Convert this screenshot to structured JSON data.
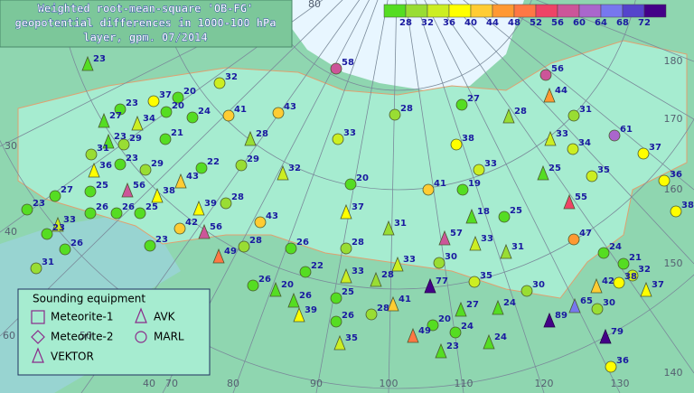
{
  "title": [
    "Weighted root-mean-square 'OB-FG'",
    "geopotential differences in 1000-100 hPa",
    "layer, gpm. 07/2014"
  ],
  "color_scale": {
    "labels": [
      28,
      32,
      36,
      40,
      44,
      48,
      52,
      56,
      60,
      64,
      68,
      72
    ],
    "colors": [
      "#55dd22",
      "#99dd33",
      "#ccee22",
      "#ffff00",
      "#ffcc33",
      "#ff9933",
      "#ff7744",
      "#ee4466",
      "#cc5599",
      "#aa66cc",
      "#7777ee",
      "#5544cc",
      "#440088"
    ]
  },
  "graticule_labels": [
    80,
    180,
    170,
    160,
    150,
    140,
    130,
    120,
    110,
    100,
    90,
    80,
    70,
    40,
    30,
    40,
    60,
    50
  ],
  "legend": {
    "title": "Sounding equipment",
    "items": [
      "Meteorite-1",
      "AVK",
      "Meteorite-2",
      "MARL",
      "VEKTOR"
    ]
  },
  "stations": [
    {
      "value": 23,
      "equipment": "AVK"
    },
    {
      "value": 58,
      "equipment": "MARL"
    },
    {
      "value": 56,
      "equipment": "MARL"
    },
    {
      "value": 44,
      "equipment": "AVK"
    },
    {
      "value": 37,
      "equipment": "MARL"
    },
    {
      "value": 20,
      "equipment": "MARL"
    },
    {
      "value": 32,
      "equipment": "MARL"
    },
    {
      "value": 23,
      "equipment": "MARL"
    },
    {
      "value": 27,
      "equipment": "AVK"
    },
    {
      "value": 34,
      "equipment": "AVK"
    },
    {
      "value": 20,
      "equipment": "MARL"
    },
    {
      "value": 24,
      "equipment": "MARL"
    },
    {
      "value": 41,
      "equipment": "MARL"
    },
    {
      "value": 43,
      "equipment": "MARL"
    },
    {
      "value": 28,
      "equipment": "MARL"
    },
    {
      "value": 27,
      "equipment": "MARL"
    },
    {
      "value": 28,
      "equipment": "AVK"
    },
    {
      "value": 31,
      "equipment": "MARL"
    },
    {
      "value": 61,
      "equipment": "MARL"
    },
    {
      "value": 23,
      "equipment": "AVK"
    },
    {
      "value": 29,
      "equipment": "MARL"
    },
    {
      "value": 21,
      "equipment": "MARL"
    },
    {
      "value": 28,
      "equipment": "AVK"
    },
    {
      "value": 33,
      "equipment": "MARL"
    },
    {
      "value": 38,
      "equipment": "MARL"
    },
    {
      "value": 33,
      "equipment": "AVK"
    },
    {
      "value": 34,
      "equipment": "MARL"
    },
    {
      "value": 37,
      "equipment": "MARL"
    },
    {
      "value": 31,
      "equipment": "MARL"
    },
    {
      "value": 23,
      "equipment": "MARL"
    },
    {
      "value": 36,
      "equipment": "AVK"
    },
    {
      "value": 29,
      "equipment": "MARL"
    },
    {
      "value": 22,
      "equipment": "MARL"
    },
    {
      "value": 29,
      "equipment": "MARL"
    },
    {
      "value": 32,
      "equipment": "AVK"
    },
    {
      "value": 20,
      "equipment": "MARL"
    },
    {
      "value": 33,
      "equipment": "MARL"
    },
    {
      "value": 25,
      "equipment": "AVK"
    },
    {
      "value": 35,
      "equipment": "MARL"
    },
    {
      "value": 36,
      "equipment": "MARL"
    },
    {
      "value": 25,
      "equipment": "MARL"
    },
    {
      "value": 27,
      "equipment": "MARL"
    },
    {
      "value": 56,
      "equipment": "AVK"
    },
    {
      "value": 38,
      "equipment": "AVK"
    },
    {
      "value": 43,
      "equipment": "AVK"
    },
    {
      "value": 28,
      "equipment": "MARL"
    },
    {
      "value": 41,
      "equipment": "MARL"
    },
    {
      "value": 19,
      "equipment": "MARL"
    },
    {
      "value": 55,
      "equipment": "AVK"
    },
    {
      "value": 23,
      "equipment": "MARL"
    },
    {
      "value": 33,
      "equipment": "AVK"
    },
    {
      "value": 26,
      "equipment": "MARL"
    },
    {
      "value": 26,
      "equipment": "MARL"
    },
    {
      "value": 25,
      "equipment": "MARL"
    },
    {
      "value": 39,
      "equipment": "AVK"
    },
    {
      "value": 37,
      "equipment": "AVK"
    },
    {
      "value": 18,
      "equipment": "AVK"
    },
    {
      "value": 25,
      "equipment": "MARL"
    },
    {
      "value": 38,
      "equipment": "MARL"
    },
    {
      "value": 23,
      "equipment": "MARL"
    },
    {
      "value": 42,
      "equipment": "MARL"
    },
    {
      "value": 56,
      "equipment": "AVK"
    },
    {
      "value": 43,
      "equipment": "MARL"
    },
    {
      "value": 31,
      "equipment": "AVK"
    },
    {
      "value": 57,
      "equipment": "AVK"
    },
    {
      "value": 33,
      "equipment": "AVK"
    },
    {
      "value": 31,
      "equipment": "AVK"
    },
    {
      "value": 47,
      "equipment": "MARL"
    },
    {
      "value": 23,
      "equipment": "MARL"
    },
    {
      "value": 26,
      "equipment": "MARL"
    },
    {
      "value": 28,
      "equipment": "MARL"
    },
    {
      "value": 49,
      "equipment": "AVK"
    },
    {
      "value": 26,
      "equipment": "MARL"
    },
    {
      "value": 28,
      "equipment": "MARL"
    },
    {
      "value": 24,
      "equipment": "MARL"
    },
    {
      "value": 21,
      "equipment": "MARL"
    },
    {
      "value": 32,
      "equipment": "MARL"
    },
    {
      "value": 31,
      "equipment": "MARL"
    },
    {
      "value": 22,
      "equipment": "MARL"
    },
    {
      "value": 33,
      "equipment": "AVK"
    },
    {
      "value": 30,
      "equipment": "MARL"
    },
    {
      "value": 33,
      "equipment": "AVK"
    },
    {
      "value": 26,
      "equipment": "MARL"
    },
    {
      "value": 20,
      "equipment": "AVK"
    },
    {
      "value": 28,
      "equipment": "AVK"
    },
    {
      "value": 35,
      "equipment": "MARL"
    },
    {
      "value": 42,
      "equipment": "AVK"
    },
    {
      "value": 38,
      "equipment": "MARL"
    },
    {
      "value": 37,
      "equipment": "AVK"
    },
    {
      "value": 30,
      "equipment": "MARL"
    },
    {
      "value": 26,
      "equipment": "AVK"
    },
    {
      "value": 25,
      "equipment": "MARL"
    },
    {
      "value": 41,
      "equipment": "AVK"
    },
    {
      "value": 77,
      "equipment": "VEKTOR"
    },
    {
      "value": 39,
      "equipment": "AVK"
    },
    {
      "value": 24,
      "equipment": "AVK"
    },
    {
      "value": 65,
      "equipment": "AVK"
    },
    {
      "value": 27,
      "equipment": "AVK"
    },
    {
      "value": 30,
      "equipment": "MARL"
    },
    {
      "value": 26,
      "equipment": "MARL"
    },
    {
      "value": 28,
      "equipment": "MARL"
    },
    {
      "value": 89,
      "equipment": "VEKTOR"
    },
    {
      "value": 20,
      "equipment": "MARL"
    },
    {
      "value": 49,
      "equipment": "AVK"
    },
    {
      "value": 24,
      "equipment": "MARL"
    },
    {
      "value": 35,
      "equipment": "AVK"
    },
    {
      "value": 79,
      "equipment": "VEKTOR"
    },
    {
      "value": 23,
      "equipment": "AVK"
    },
    {
      "value": 24,
      "equipment": "AVK"
    },
    {
      "value": 36,
      "equipment": "MARL"
    }
  ]
}
